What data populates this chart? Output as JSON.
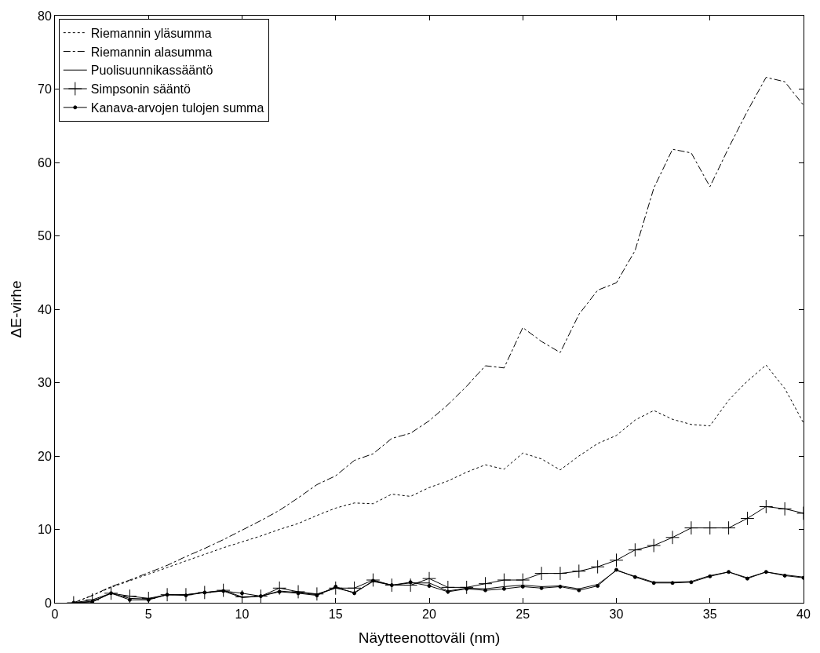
{
  "chart_data": {
    "type": "line",
    "xlabel": "Näytteenottoväli (nm)",
    "ylabel": "ΔE-virhe",
    "x": [
      1,
      2,
      3,
      4,
      5,
      6,
      7,
      8,
      9,
      10,
      11,
      12,
      13,
      14,
      15,
      16,
      17,
      18,
      19,
      20,
      21,
      22,
      23,
      24,
      25,
      26,
      27,
      28,
      29,
      30,
      31,
      32,
      33,
      34,
      35,
      36,
      37,
      38,
      39,
      40
    ],
    "xlim": [
      0,
      40
    ],
    "xticks": [
      0,
      5,
      10,
      15,
      20,
      25,
      30,
      35,
      40
    ],
    "ylim": [
      0,
      80
    ],
    "yticks": [
      0,
      10,
      20,
      30,
      40,
      50,
      60,
      70,
      80
    ],
    "legend": "top left",
    "series": [
      {
        "name": "Riemannin yläsumma",
        "color": "#000000",
        "line_style": "dotted",
        "marker": "none",
        "values": [
          0,
          1,
          2.1,
          3,
          3.9,
          4.8,
          5.7,
          6.6,
          7.5,
          8.3,
          9.1,
          10,
          10.8,
          11.9,
          12.9,
          13.6,
          13.5,
          14.8,
          14.5,
          15.7,
          16.6,
          17.8,
          18.8,
          18.2,
          20.4,
          19.6,
          18.1,
          20,
          21.7,
          22.8,
          24.9,
          26.2,
          25,
          24.3,
          24.1,
          27.6,
          30.2,
          32.4,
          29.2,
          24.5
        ]
      },
      {
        "name": "Riemannin alasumma",
        "color": "#000000",
        "line_style": "dashdot",
        "marker": "none",
        "values": [
          0,
          1,
          2.2,
          3.1,
          4.1,
          5.1,
          6.3,
          7.4,
          8.6,
          9.9,
          11.2,
          12.6,
          14.3,
          16.1,
          17.3,
          19.4,
          20.3,
          22.4,
          23.1,
          24.8,
          27,
          29.5,
          32.3,
          32,
          37.5,
          35.6,
          34.1,
          39.3,
          42.6,
          43.6,
          48,
          56.5,
          61.8,
          61.3,
          56.7,
          62,
          67,
          71.6,
          71,
          67.8
        ]
      },
      {
        "name": "Puolisuunnikassääntö",
        "color": "#000000",
        "line_style": "solid",
        "marker": "none",
        "values": [
          0,
          0.2,
          1.3,
          0.6,
          0.5,
          1.1,
          1.1,
          1.4,
          1.6,
          0.7,
          0.9,
          1.6,
          1.4,
          1.1,
          2,
          1.4,
          2.9,
          2.4,
          2.7,
          2.7,
          1.6,
          2,
          1.9,
          2.2,
          2.4,
          2.2,
          2.3,
          1.9,
          2.5,
          4.4,
          3.6,
          2.8,
          2.8,
          2.9,
          3.7,
          4.2,
          3.4,
          4.2,
          3.8,
          3.5
        ]
      },
      {
        "name": "Simpsonin sääntö",
        "color": "#000000",
        "line_style": "solid",
        "marker": "cross",
        "values": [
          0,
          0.4,
          1.3,
          0.9,
          0.6,
          1.1,
          1.1,
          1.4,
          1.7,
          0.8,
          0.9,
          2,
          1.5,
          1.2,
          2,
          2,
          3.1,
          2.4,
          2.4,
          3.3,
          2.1,
          2.1,
          2.6,
          3.1,
          3.1,
          4,
          4,
          4.3,
          4.9,
          5.8,
          7.2,
          7.8,
          8.9,
          10.2,
          10.2,
          10.2,
          11.5,
          13.1,
          12.8,
          12.2
        ]
      },
      {
        "name": "Kanava-arvojen tulojen summa",
        "color": "#000000",
        "line_style": "solid",
        "marker": "circle",
        "values": [
          0,
          0.1,
          1.3,
          0.4,
          0.4,
          1.1,
          1,
          1.4,
          1.6,
          1.3,
          0.9,
          1.5,
          1.3,
          1,
          2.2,
          1.3,
          3,
          2.4,
          2.8,
          2.3,
          1.5,
          1.9,
          1.7,
          1.9,
          2.2,
          2,
          2.2,
          1.7,
          2.3,
          4.5,
          3.5,
          2.7,
          2.7,
          2.8,
          3.6,
          4.2,
          3.3,
          4.2,
          3.7,
          3.4
        ]
      }
    ]
  }
}
